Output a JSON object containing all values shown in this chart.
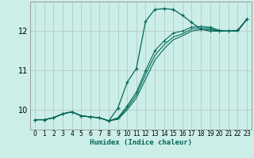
{
  "xlabel": "Humidex (Indice chaleur)",
  "ylabel": "",
  "bg_color": "#cceee8",
  "grid_color": "#b8c8c4",
  "line_color": "#006858",
  "xlim": [
    -0.5,
    23.5
  ],
  "ylim": [
    9.5,
    12.75
  ],
  "yticks": [
    10,
    11,
    12
  ],
  "xticks": [
    0,
    1,
    2,
    3,
    4,
    5,
    6,
    7,
    8,
    9,
    10,
    11,
    12,
    13,
    14,
    15,
    16,
    17,
    18,
    19,
    20,
    21,
    22,
    23
  ],
  "series1_x": [
    0,
    1,
    2,
    3,
    4,
    5,
    6,
    7,
    8,
    9,
    10,
    11,
    12,
    13,
    14,
    15,
    16,
    17,
    18,
    19,
    20,
    21,
    22,
    23
  ],
  "series1_y": [
    9.75,
    9.75,
    9.8,
    9.9,
    9.95,
    9.85,
    9.82,
    9.8,
    9.72,
    10.05,
    10.7,
    11.05,
    12.25,
    12.55,
    12.57,
    12.55,
    12.4,
    12.22,
    12.05,
    12.0,
    12.0,
    12.0,
    12.02,
    12.3
  ],
  "series2_x": [
    0,
    1,
    2,
    3,
    4,
    5,
    6,
    7,
    8,
    9,
    10,
    11,
    12,
    13,
    14,
    15,
    16,
    17,
    18,
    19,
    20,
    21,
    22,
    23
  ],
  "series2_y": [
    9.75,
    9.75,
    9.8,
    9.9,
    9.95,
    9.85,
    9.82,
    9.8,
    9.72,
    9.8,
    10.1,
    10.45,
    11.0,
    11.5,
    11.75,
    11.95,
    12.0,
    12.1,
    12.12,
    12.1,
    12.02,
    12.0,
    12.02,
    12.3
  ],
  "series3_x": [
    0,
    1,
    2,
    3,
    4,
    5,
    6,
    7,
    8,
    9,
    10,
    11,
    12,
    13,
    14,
    15,
    16,
    17,
    18,
    19,
    20,
    21,
    22,
    23
  ],
  "series3_y": [
    9.75,
    9.75,
    9.8,
    9.9,
    9.95,
    9.85,
    9.82,
    9.8,
    9.72,
    9.78,
    10.05,
    10.38,
    10.9,
    11.38,
    11.65,
    11.85,
    11.93,
    12.05,
    12.08,
    12.07,
    12.0,
    12.0,
    12.0,
    12.3
  ],
  "series4_x": [
    0,
    1,
    2,
    3,
    4,
    5,
    6,
    7,
    8,
    9,
    10,
    11,
    12,
    13,
    14,
    15,
    16,
    17,
    18,
    19,
    20,
    21,
    22,
    23
  ],
  "series4_y": [
    9.75,
    9.75,
    9.8,
    9.9,
    9.95,
    9.85,
    9.82,
    9.8,
    9.72,
    9.76,
    10.0,
    10.3,
    10.78,
    11.26,
    11.55,
    11.78,
    11.88,
    12.0,
    12.04,
    12.04,
    12.0,
    12.0,
    12.0,
    12.3
  ]
}
